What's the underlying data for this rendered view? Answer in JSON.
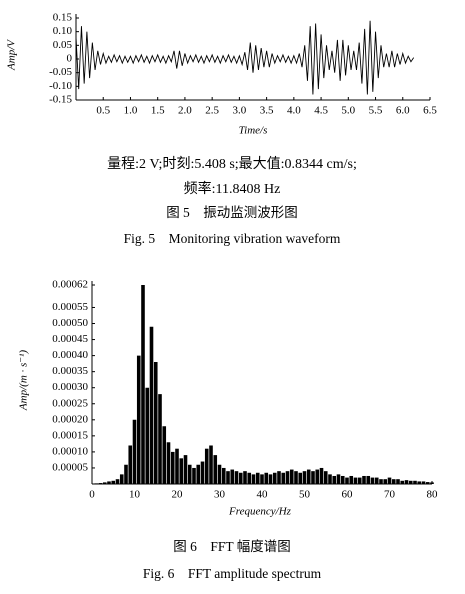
{
  "chart_data": [
    {
      "type": "line",
      "ylabel": "Amp/V",
      "xlabel": "Time/s",
      "color": "#000000",
      "xlim": [
        0,
        6.5
      ],
      "ylim": [
        -0.15,
        0.15
      ],
      "xticks": [
        0.5,
        {
          "value": 1,
          "label": "1.0"
        },
        1.5,
        {
          "value": 2,
          "label": "2.0"
        },
        2.5,
        {
          "value": 3,
          "label": "3.0"
        },
        3.5,
        {
          "value": 4,
          "label": "4.0"
        },
        4.5,
        {
          "value": 5,
          "label": "5.0"
        },
        5.5,
        {
          "value": 6,
          "label": "6.0"
        },
        6.5
      ],
      "yticks": [
        0.15,
        {
          "value": 0.1,
          "label": "0.10"
        },
        0.05,
        0,
        -0.05,
        {
          "value": -0.1,
          "label": "-0.10"
        },
        -0.15
      ],
      "x": [
        0,
        0.05,
        0.1,
        0.15,
        0.2,
        0.25,
        0.3,
        0.35,
        0.4,
        0.45,
        0.5,
        0.55,
        0.6,
        0.65,
        0.7,
        0.75,
        0.8,
        0.85,
        0.9,
        0.95,
        1,
        1.05,
        1.1,
        1.15,
        1.2,
        1.25,
        1.3,
        1.35,
        1.4,
        1.45,
        1.5,
        1.55,
        1.6,
        1.65,
        1.7,
        1.75,
        1.8,
        1.85,
        1.9,
        1.95,
        2,
        2.05,
        2.1,
        2.15,
        2.2,
        2.25,
        2.3,
        2.35,
        2.4,
        2.45,
        2.5,
        2.55,
        2.6,
        2.65,
        2.7,
        2.75,
        2.8,
        2.85,
        2.9,
        2.95,
        3,
        3.05,
        3.1,
        3.15,
        3.2,
        3.25,
        3.3,
        3.35,
        3.4,
        3.45,
        3.5,
        3.55,
        3.6,
        3.65,
        3.7,
        3.75,
        3.8,
        3.85,
        3.9,
        3.95,
        4,
        4.05,
        4.1,
        4.15,
        4.2,
        4.25,
        4.3,
        4.35,
        4.4,
        4.45,
        4.5,
        4.55,
        4.6,
        4.65,
        4.7,
        4.75,
        4.8,
        4.85,
        4.9,
        4.95,
        5,
        5.05,
        5.1,
        5.15,
        5.2,
        5.25,
        5.3,
        5.35,
        5.4,
        5.45,
        5.5,
        5.55,
        5.6,
        5.65,
        5.7,
        5.75,
        5.8,
        5.85,
        5.9,
        5.95,
        6,
        6.05,
        6.1,
        6.15,
        6.2
      ],
      "values": [
        0.08,
        -0.11,
        0.12,
        -0.09,
        0.1,
        -0.07,
        0.06,
        -0.04,
        0.03,
        -0.02,
        0.02,
        -0.015,
        0.01,
        -0.012,
        0.015,
        -0.01,
        0.012,
        -0.015,
        0.01,
        -0.012,
        0.01,
        -0.015,
        0.012,
        -0.01,
        0.015,
        -0.012,
        0.01,
        -0.015,
        0.012,
        -0.01,
        0.015,
        -0.012,
        0.01,
        -0.015,
        0.012,
        -0.01,
        0.03,
        -0.035,
        0.03,
        -0.025,
        0.02,
        -0.015,
        0.012,
        -0.01,
        0.015,
        -0.012,
        0.01,
        -0.015,
        0.012,
        -0.01,
        0.015,
        -0.012,
        0.01,
        -0.015,
        0.012,
        -0.01,
        0.015,
        -0.012,
        0.01,
        -0.015,
        0.012,
        -0.02,
        0.025,
        -0.04,
        0.06,
        -0.05,
        0.05,
        -0.04,
        0.04,
        -0.03,
        0.03,
        -0.03,
        0.02,
        -0.015,
        0.012,
        -0.01,
        0.015,
        -0.012,
        0.01,
        -0.015,
        0.012,
        -0.015,
        0.02,
        -0.03,
        0.05,
        -0.08,
        0.12,
        -0.13,
        0.13,
        -0.11,
        0.09,
        -0.07,
        0.05,
        -0.04,
        0.03,
        -0.05,
        0.07,
        -0.08,
        0.07,
        -0.06,
        0.05,
        -0.04,
        0.03,
        -0.04,
        0.06,
        -0.09,
        0.11,
        -0.13,
        0.14,
        -0.12,
        0.1,
        -0.07,
        0.05,
        -0.03,
        0.02,
        -0.03,
        0.03,
        -0.03,
        0.02,
        -0.02,
        0.02,
        -0.015,
        0.01,
        -0.01,
        0.005
      ],
      "notes": [
        "量程:2 V;时刻:5.408 s;最大值:0.8344 cm/s;",
        "频率:11.8408 Hz"
      ],
      "caption_zh": "图 5　振动监测波形图",
      "caption_en": "Fig. 5　Monitoring vibration waveform"
    },
    {
      "type": "bar",
      "ylabel": "Amp/(m · s⁻¹)",
      "xlabel": "Frequency/Hz",
      "color": "#000000",
      "xlim": [
        0,
        80
      ],
      "ylim": [
        0,
        0.00062
      ],
      "xticks": [
        0,
        10,
        20,
        30,
        40,
        50,
        60,
        70,
        80
      ],
      "yticks": [
        5e-05,
        {
          "value": 0.0001,
          "label": "0.00010"
        },
        0.00015,
        {
          "value": 0.0002,
          "label": "0.00020"
        },
        0.00025,
        {
          "value": 0.0003,
          "label": "0.00030"
        },
        0.00035,
        {
          "value": 0.0004,
          "label": "0.00040"
        },
        0.00045,
        {
          "value": 0.0005,
          "label": "0.00050"
        },
        0.00055,
        0.00062
      ],
      "x": [
        0,
        1,
        2,
        3,
        4,
        5,
        6,
        7,
        8,
        9,
        10,
        11,
        12,
        13,
        14,
        15,
        16,
        17,
        18,
        19,
        20,
        21,
        22,
        23,
        24,
        25,
        26,
        27,
        28,
        29,
        30,
        31,
        32,
        33,
        34,
        35,
        36,
        37,
        38,
        39,
        40,
        41,
        42,
        43,
        44,
        45,
        46,
        47,
        48,
        49,
        50,
        51,
        52,
        53,
        54,
        55,
        56,
        57,
        58,
        59,
        60,
        61,
        62,
        63,
        64,
        65,
        66,
        67,
        68,
        69,
        70,
        71,
        72,
        73,
        74,
        75,
        76,
        77,
        78,
        79,
        80
      ],
      "values": [
        0,
        2e-06,
        3e-06,
        5e-06,
        8e-06,
        1e-05,
        1.5e-05,
        3e-05,
        6e-05,
        0.00012,
        0.0002,
        0.0004,
        0.00062,
        0.0003,
        0.00049,
        0.00038,
        0.00028,
        0.00018,
        0.00013,
        0.0001,
        0.00011,
        8e-05,
        9e-05,
        6e-05,
        5e-05,
        6e-05,
        7e-05,
        0.00011,
        0.00012,
        9e-05,
        6e-05,
        5e-05,
        4e-05,
        4.5e-05,
        4e-05,
        3.5e-05,
        4e-05,
        3.5e-05,
        3e-05,
        3.5e-05,
        3e-05,
        3.5e-05,
        3e-05,
        3.5e-05,
        4e-05,
        3.5e-05,
        4e-05,
        4.5e-05,
        4e-05,
        3.5e-05,
        4e-05,
        4.5e-05,
        4e-05,
        4.5e-05,
        5e-05,
        4e-05,
        3e-05,
        2.5e-05,
        3e-05,
        2.5e-05,
        2e-05,
        2.5e-05,
        2e-05,
        2e-05,
        2.5e-05,
        2.5e-05,
        2e-05,
        2e-05,
        1.5e-05,
        1.5e-05,
        2e-05,
        1.5e-05,
        1.5e-05,
        1e-05,
        1.2e-05,
        1e-05,
        1e-05,
        8e-06,
        8e-06,
        6e-06,
        5e-06
      ],
      "caption_zh": "图 6　FFT 幅度谱图",
      "caption_en": "Fig. 6　FFT amplitude spectrum"
    }
  ]
}
